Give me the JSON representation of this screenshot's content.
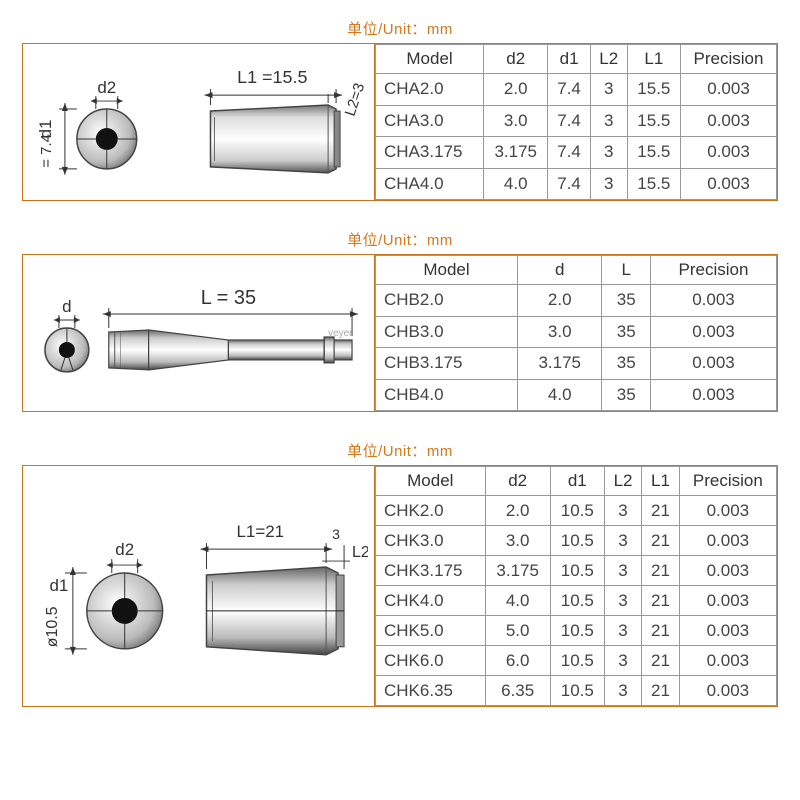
{
  "unit_label": "单位/Unit：mm",
  "colors": {
    "border": "#c8751c",
    "unit_text": "#d4781a",
    "cell_border": "#999999",
    "dim_line": "#333333",
    "metal_dark": "#555555",
    "metal_mid": "#aaaaaa",
    "metal_light": "#e8e8e8"
  },
  "panel1": {
    "diagram": {
      "d1_label": "d1",
      "d1_val": "= 7.4",
      "d2_label": "d2",
      "L1_label": "L1 =15.5",
      "L2_label": "L2=3"
    },
    "headers": [
      "Model",
      "d2",
      "d1",
      "L2",
      "L1",
      "Precision"
    ],
    "rows": [
      [
        "CHA2.0",
        "2.0",
        "7.4",
        "3",
        "15.5",
        "0.003"
      ],
      [
        "CHA3.0",
        "3.0",
        "7.4",
        "3",
        "15.5",
        "0.003"
      ],
      [
        "CHA3.175",
        "3.175",
        "7.4",
        "3",
        "15.5",
        "0.003"
      ],
      [
        "CHA4.0",
        "4.0",
        "7.4",
        "3",
        "15.5",
        "0.003"
      ]
    ]
  },
  "panel2": {
    "diagram": {
      "d_label": "d",
      "L_label": "L = 35",
      "watermark": "veyer"
    },
    "headers": [
      "Model",
      "d",
      "L",
      "Precision"
    ],
    "rows": [
      [
        "CHB2.0",
        "2.0",
        "35",
        "0.003"
      ],
      [
        "CHB3.0",
        "3.0",
        "35",
        "0.003"
      ],
      [
        "CHB3.175",
        "3.175",
        "35",
        "0.003"
      ],
      [
        "CHB4.0",
        "4.0",
        "35",
        "0.003"
      ]
    ]
  },
  "panel3": {
    "diagram": {
      "d1_label": "d1",
      "d1_val": "ø10.5",
      "d2_label": "d2",
      "L1_label": "L1=21",
      "L2_label": "L2",
      "L2_val": "3"
    },
    "headers": [
      "Model",
      "d2",
      "d1",
      "L2",
      "L1",
      "Precision"
    ],
    "rows": [
      [
        "CHK2.0",
        "2.0",
        "10.5",
        "3",
        "21",
        "0.003"
      ],
      [
        "CHK3.0",
        "3.0",
        "10.5",
        "3",
        "21",
        "0.003"
      ],
      [
        "CHK3.175",
        "3.175",
        "10.5",
        "3",
        "21",
        "0.003"
      ],
      [
        "CHK4.0",
        "4.0",
        "10.5",
        "3",
        "21",
        "0.003"
      ],
      [
        "CHK5.0",
        "5.0",
        "10.5",
        "3",
        "21",
        "0.003"
      ],
      [
        "CHK6.0",
        "6.0",
        "10.5",
        "3",
        "21",
        "0.003"
      ],
      [
        "CHK6.35",
        "6.35",
        "10.5",
        "3",
        "21",
        "0.003"
      ]
    ]
  }
}
